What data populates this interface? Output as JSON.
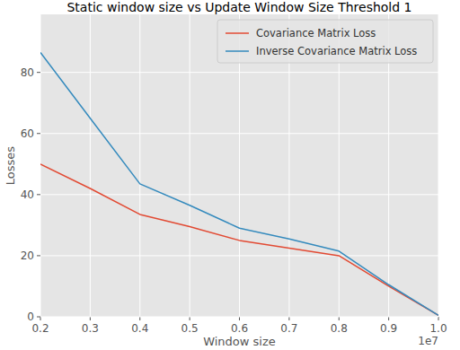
{
  "chart_data": {
    "type": "line",
    "title": "Static window size vs Update Window Size Threshold 1",
    "x_label": "Window size",
    "y_label": "Losses",
    "x_offset_text": "1e7",
    "x": [
      0.2,
      0.3,
      0.4,
      0.5,
      0.6,
      0.7,
      0.8,
      0.9,
      1.0
    ],
    "series": [
      {
        "name": "Covariance Matrix Loss",
        "color": "#e24a33",
        "values": [
          50,
          42,
          33.5,
          29.5,
          25,
          22.5,
          20,
          10,
          0.5
        ]
      },
      {
        "name": "Inverse Covariance Matrix Loss",
        "color": "#348abd",
        "values": [
          86.5,
          65,
          43.5,
          36.5,
          29,
          25.5,
          21.5,
          10.5,
          0.5
        ]
      }
    ],
    "xlim": [
      0.2,
      1.0
    ],
    "ylim": [
      0,
      99
    ],
    "xticks": [
      0.2,
      0.3,
      0.4,
      0.5,
      0.6,
      0.7,
      0.8,
      0.9,
      {
        "value": 1,
        "label": "1.0"
      }
    ],
    "yticks": [
      0,
      20,
      40,
      60,
      80
    ],
    "grid": true,
    "legend": "upper right"
  }
}
